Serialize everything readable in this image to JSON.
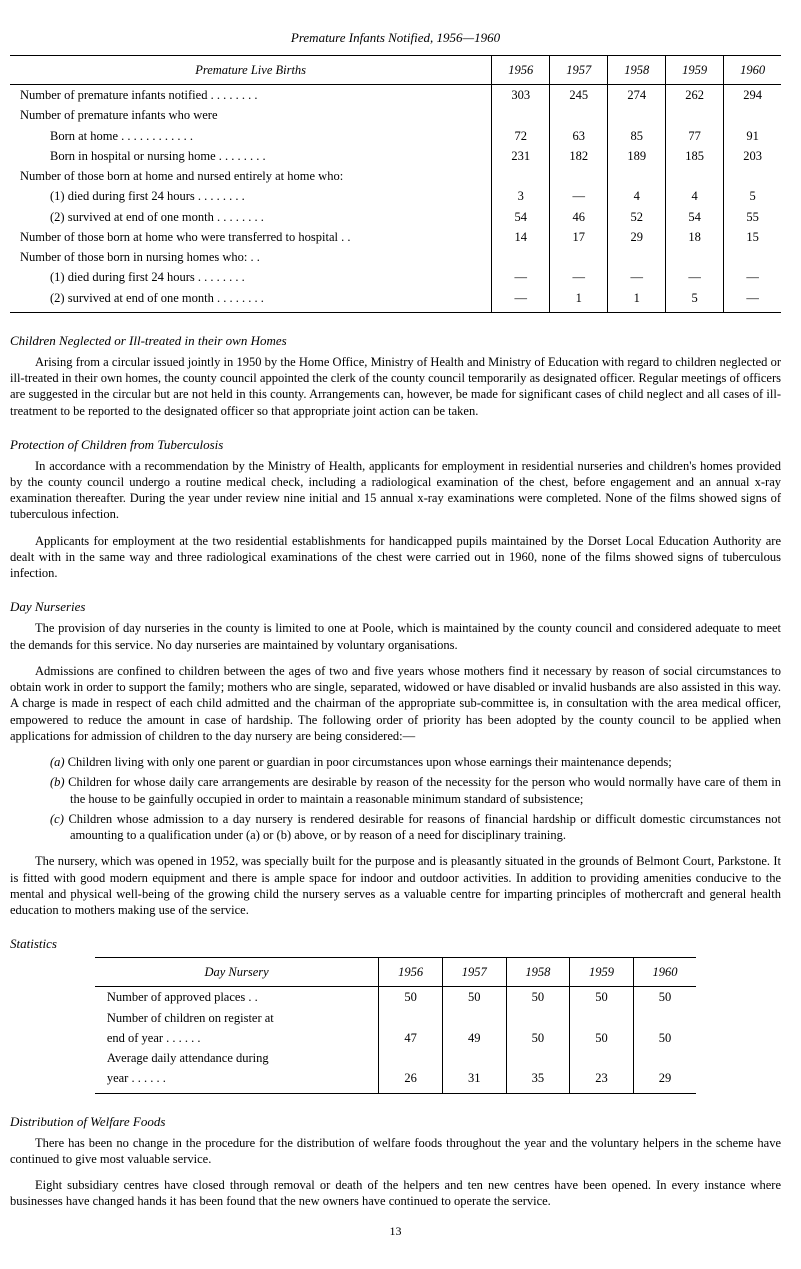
{
  "pageTitle": "Premature Infants Notified, 1956—1960",
  "table1": {
    "headers": [
      "Premature Live Births",
      "1956",
      "1957",
      "1958",
      "1959",
      "1960"
    ],
    "rows": [
      {
        "label": "Number of premature infants notified      . .            . .            . .            . .",
        "cells": [
          "303",
          "245",
          "274",
          "262",
          "294"
        ],
        "indent": 0
      },
      {
        "label": "Number of premature infants who were",
        "cells": [
          "",
          "",
          "",
          "",
          ""
        ],
        "indent": 0
      },
      {
        "label": "Born at home          . .            . .            . .            . .            . .            . .",
        "cells": [
          "72",
          "63",
          "85",
          "77",
          "91"
        ],
        "indent": 1
      },
      {
        "label": "Born in hospital or nursing home           . .            . .            . .            . .",
        "cells": [
          "231",
          "182",
          "189",
          "185",
          "203"
        ],
        "indent": 1
      },
      {
        "label": "Number of those born at home and nursed entirely at home who:",
        "cells": [
          "",
          "",
          "",
          "",
          ""
        ],
        "indent": 0
      },
      {
        "label": "(1) died during first 24 hours                      . .            . .            . .            . .",
        "cells": [
          "3",
          "—",
          "4",
          "4",
          "5"
        ],
        "indent": 1
      },
      {
        "label": "(2) survived at end of one month            . .            . .            . .            . .",
        "cells": [
          "54",
          "46",
          "52",
          "54",
          "55"
        ],
        "indent": 1
      },
      {
        "label": "Number of those born at home who were transferred to hospital        . .",
        "cells": [
          "14",
          "17",
          "29",
          "18",
          "15"
        ],
        "indent": 0
      },
      {
        "label": "Number of those born in nursing homes who:    . .",
        "cells": [
          "",
          "",
          "",
          "",
          ""
        ],
        "indent": 0
      },
      {
        "label": "(1) died during first 24 hours                      . .            . .            . .            . .",
        "cells": [
          "—",
          "—",
          "—",
          "—",
          "—"
        ],
        "indent": 1
      },
      {
        "label": "(2) survived at end of one month            . .            . .            . .            . .",
        "cells": [
          "—",
          "1",
          "1",
          "5",
          "—"
        ],
        "indent": 1
      }
    ]
  },
  "section1": {
    "heading": "Children Neglected or Ill-treated in their own Homes",
    "para1": "Arising from a circular issued jointly in 1950 by the Home Office, Ministry of Health and Ministry of Education with regard to children neglected or ill-treated in their own homes, the county council appointed the clerk of the county council temporarily as designated officer. Regular meetings of officers are suggested in the circular but are not held in this county. Arrangements can, however, be made for significant cases of child neglect and all cases of ill-treatment to be reported to the designated officer so that appropriate joint action can be taken."
  },
  "section2": {
    "heading": "Protection of Children from Tuberculosis",
    "para1": "In accordance with a recommendation by the Ministry of Health, applicants for employment in residential nurseries and children's homes provided by the county council undergo a routine medical check, including a radiological examination of the chest, before engagement and an annual x-ray examination thereafter. During the year under review nine initial and 15 annual x-ray examinations were completed. None of the films showed signs of tuberculous infection.",
    "para2": "Applicants for employment at the two residential establishments for handicapped pupils maintained by the Dorset Local Education Authority are dealt with in the same way and three radiological examinations of the chest were carried out in 1960, none of the films showed signs of tuberculous infection."
  },
  "section3": {
    "heading": "Day Nurseries",
    "para1": "The provision of day nurseries in the county is limited to one at Poole, which is maintained by the county council and considered adequate to meet the demands for this service. No day nurseries are maintained by voluntary organisations.",
    "para2": "Admissions are confined to children between the ages of two and five years whose mothers find it necessary by reason of social circumstances to obtain work in order to support the family; mothers who are single, separated, widowed or have disabled or invalid husbands are also assisted in this way. A charge is made in respect of each child admitted and the chairman of the appropriate sub-committee is, in consultation with the area medical officer, empowered to reduce the amount in case of hardship. The following order of priority has been adopted by the county council to be applied when applications for admission of children to the day nursery are being considered:—",
    "items": [
      {
        "letter": "(a)",
        "text": "Children living with only one parent or guardian in poor circumstances upon whose earnings their maintenance depends;"
      },
      {
        "letter": "(b)",
        "text": "Children for whose daily care arrangements are desirable by reason of the necessity for the person who would normally have care of them in the house to be gainfully occupied in order to maintain a reasonable minimum standard of subsistence;"
      },
      {
        "letter": "(c)",
        "text": "Children whose admission to a day nursery is rendered desirable for reasons of financial hardship or difficult domestic circumstances not amounting to a qualification under (a) or (b) above, or by reason of a need for disciplinary training."
      }
    ],
    "para3": "The nursery, which was opened in 1952, was specially built for the purpose and is pleasantly situated in the grounds of Belmont Court, Parkstone. It is fitted with good modern equipment and there is ample space for indoor and outdoor activities. In addition to providing amenities conducive to the mental and physical well-being of the growing child the nursery serves as a valuable centre for imparting principles of mothercraft and general health education to mothers making use of the service."
  },
  "statisticsLabel": "Statistics",
  "table2": {
    "headers": [
      "Day Nursery",
      "1956",
      "1957",
      "1958",
      "1959",
      "1960"
    ],
    "rows": [
      {
        "label": "Number of approved places           . .",
        "cells": [
          "50",
          "50",
          "50",
          "50",
          "50"
        ]
      },
      {
        "label": "Number of children on register at",
        "cells": [
          "",
          "",
          "",
          "",
          ""
        ]
      },
      {
        "label": "   end of year    . .            . .            . .",
        "cells": [
          "47",
          "49",
          "50",
          "50",
          "50"
        ]
      },
      {
        "label": "Average  daily  attendance  during",
        "cells": [
          "",
          "",
          "",
          "",
          ""
        ]
      },
      {
        "label": "   year           . .            . .            . .",
        "cells": [
          "26",
          "31",
          "35",
          "23",
          "29"
        ]
      }
    ]
  },
  "section4": {
    "heading": "Distribution of Welfare Foods",
    "para1": "There has been no change in the procedure for the distribution of welfare foods throughout the year and the voluntary helpers in the scheme have continued to give most valuable service.",
    "para2": "Eight subsidiary centres have closed through removal or death of the helpers and ten new centres have been opened. In every instance where businesses have changed hands it has been found that the new owners have continued to operate the service."
  },
  "pageNumber": "13"
}
